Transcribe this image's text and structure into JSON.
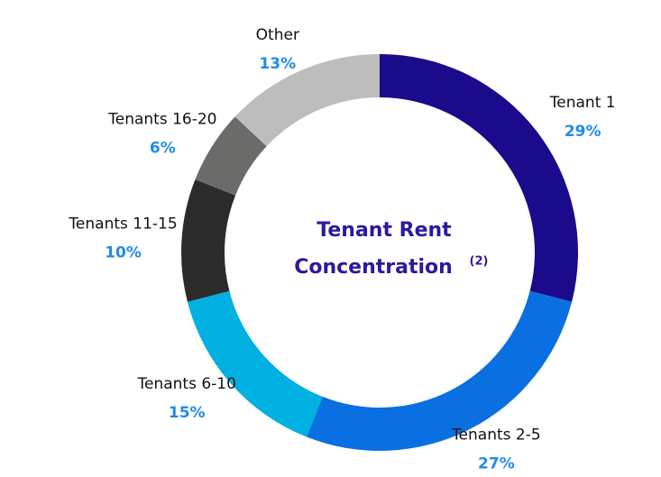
{
  "chart_data": {
    "type": "donut",
    "title_lines": [
      "Tenant Rent",
      "Concentration"
    ],
    "title_superscript": "(2)",
    "categories": [
      "Tenant 1",
      "Tenants 2-5",
      "Tenants 6-10",
      "Tenants 11-15",
      "Tenants 16-20",
      "Other"
    ],
    "values": [
      29,
      27,
      15,
      10,
      6,
      13
    ],
    "value_labels": [
      "29%",
      "27%",
      "15%",
      "10%",
      "6%",
      "13%"
    ],
    "colors": [
      "#1a0a8c",
      "#0a6fe0",
      "#00b0e0",
      "#2b2b2b",
      "#6b6b6a",
      "#bdbdbd"
    ]
  }
}
